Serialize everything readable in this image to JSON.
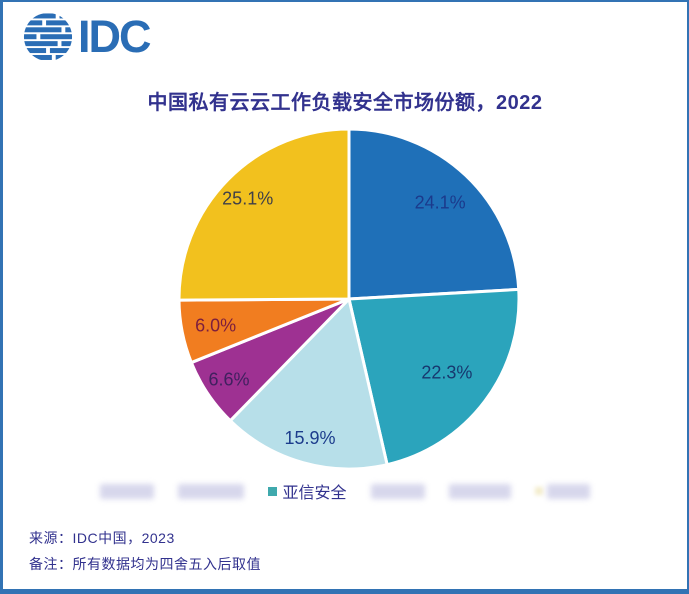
{
  "frame": {
    "border_color": "#3273b4"
  },
  "logo": {
    "text": "IDC",
    "color": "#2a6db5",
    "globe_icon": "striped-globe"
  },
  "header": {
    "title": "中国私有云云工作负载安全市场份额，2022",
    "color": "#32328e"
  },
  "chart_data": {
    "type": "pie",
    "title": "中国私有云云工作负载安全市场份额，2022",
    "start_angle_deg": 0,
    "direction": "clockwise",
    "units": "percent",
    "slices": [
      {
        "label": "24.1%",
        "value": 24.1,
        "color": "#1F70B8",
        "label_color": "#1B3A8C",
        "label_r": 0.78
      },
      {
        "label": "22.3%",
        "value": 22.3,
        "color": "#2BA4BC",
        "label_color": "#17386F",
        "label_r": 0.72
      },
      {
        "label": "15.9%",
        "value": 15.9,
        "color": "#B7DFE9",
        "label_color": "#1C3C8C",
        "label_r": 0.85
      },
      {
        "label": "6.6%",
        "value": 6.6,
        "color": "#9E3192",
        "label_color": "#40205F",
        "label_r": 0.85
      },
      {
        "label": "6.0%",
        "value": 6.0,
        "color": "#F17D20",
        "label_color": "#7C1E3E",
        "label_r": 0.8
      },
      {
        "label": "25.1%",
        "value": 25.1,
        "color": "#F2C11E",
        "label_color": "#3F3F48",
        "label_r": 0.84
      }
    ],
    "slice_gap_color": "#ffffff",
    "legend_position": "bottom",
    "legend_visible_entry": "亚信安全"
  },
  "legend": {
    "items": [
      {
        "type": "redacted",
        "width": 54
      },
      {
        "type": "redacted",
        "width": 66
      },
      {
        "type": "visible",
        "text": "亚信安全",
        "marker_color": "#3FA9AD",
        "text_color": "#32328e"
      },
      {
        "type": "redacted",
        "width": 54
      },
      {
        "type": "redacted",
        "width": 62
      },
      {
        "type": "redacted",
        "width": 43,
        "ghost_marker_color": "#F3ECCB"
      }
    ],
    "blur_color": "#d7d7ec"
  },
  "footer": {
    "source": "来源：IDC中国，2023",
    "note": "备注：所有数据均为四舍五入后取值",
    "color": "#32328e"
  }
}
